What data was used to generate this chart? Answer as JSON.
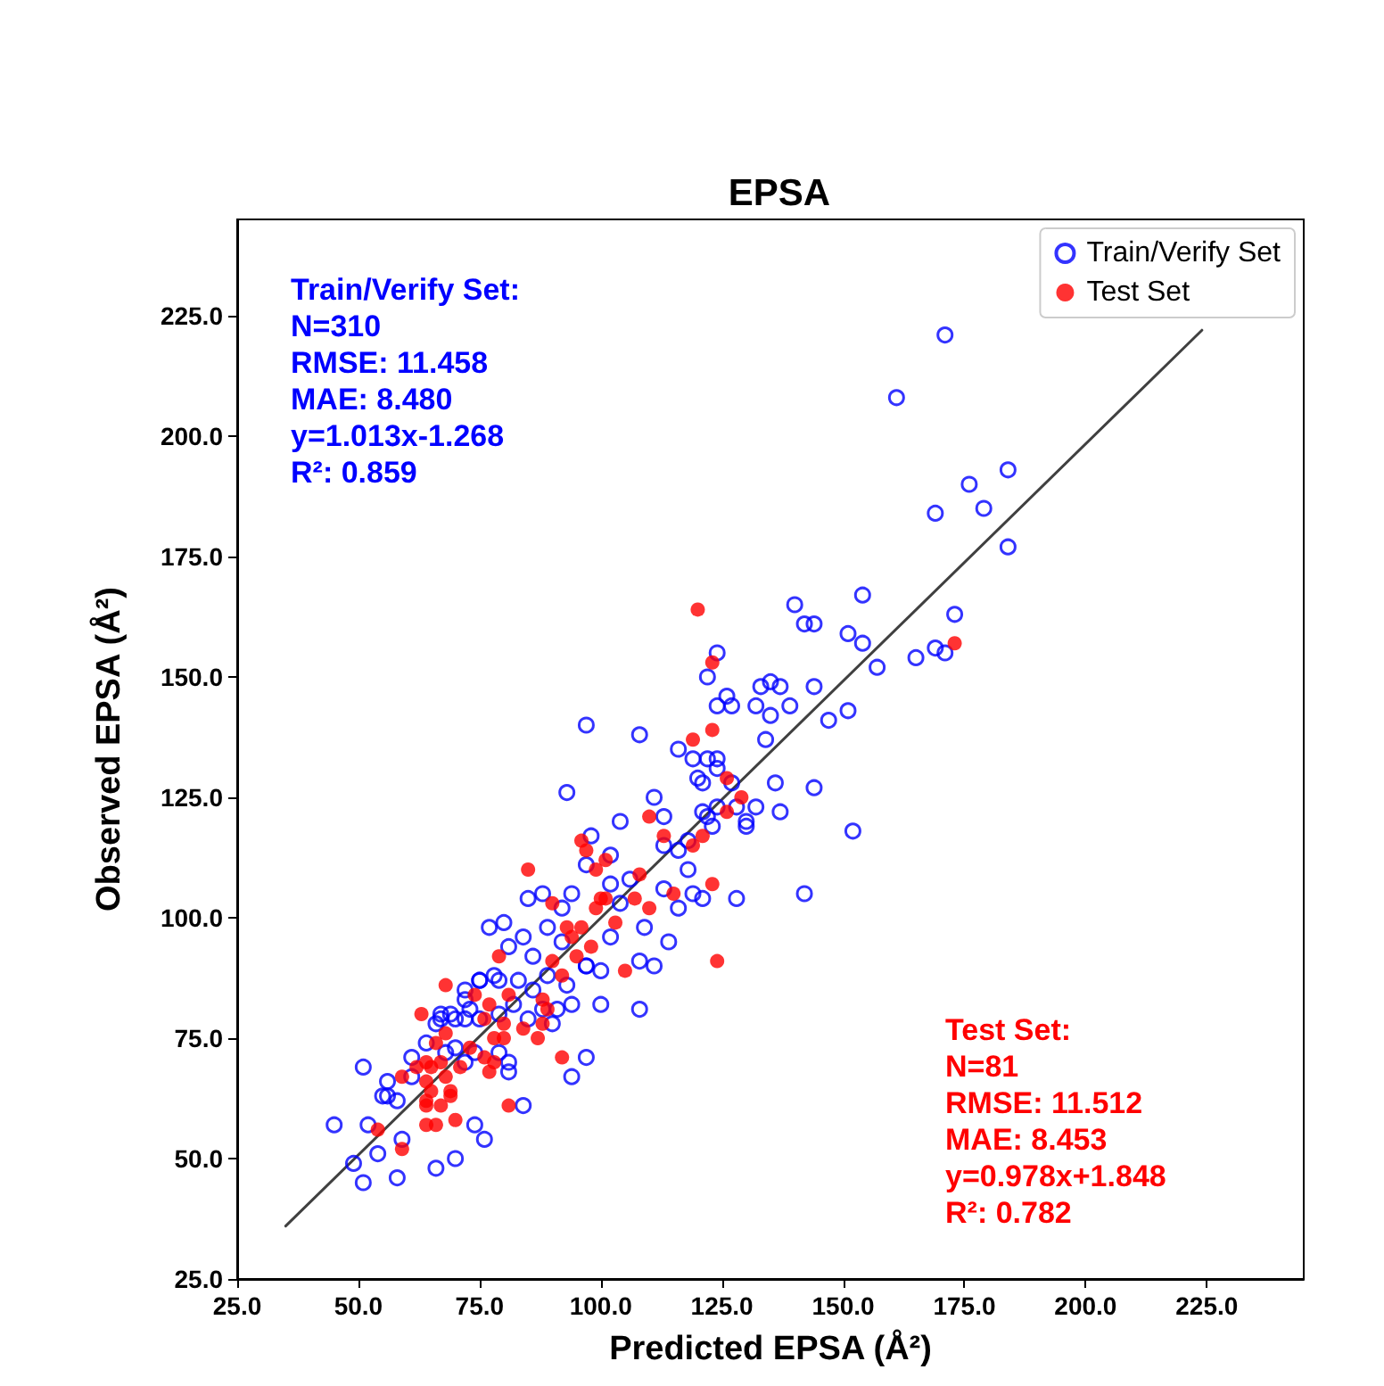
{
  "chart_data": {
    "type": "scatter",
    "title": "EPSA",
    "xlabel": "Predicted EPSA (Å²)",
    "ylabel": "Observed EPSA (Å²)",
    "xlim": [
      25,
      245
    ],
    "ylim": [
      25,
      245
    ],
    "xticks": [
      {
        "value": 25,
        "label": "25.0"
      },
      {
        "value": 50,
        "label": "50.0"
      },
      {
        "value": 75,
        "label": "75.0"
      },
      {
        "value": 100,
        "label": "100.0"
      },
      {
        "value": 125,
        "label": "125.0"
      },
      {
        "value": 150,
        "label": "150.0"
      },
      {
        "value": 175,
        "label": "175.0"
      },
      {
        "value": 200,
        "label": "200.0"
      },
      {
        "value": 225,
        "label": "225.0"
      }
    ],
    "yticks": [
      {
        "value": 25,
        "label": "25.0"
      },
      {
        "value": 50,
        "label": "50.0"
      },
      {
        "value": 75,
        "label": "75.0"
      },
      {
        "value": 100,
        "label": "100.0"
      },
      {
        "value": 125,
        "label": "125.0"
      },
      {
        "value": 150,
        "label": "150.0"
      },
      {
        "value": 175,
        "label": "175.0"
      },
      {
        "value": 200,
        "label": "200.0"
      },
      {
        "value": 225,
        "label": "225.0"
      }
    ],
    "grid": false,
    "legend": "top right",
    "marker": "circle",
    "annotations": [
      "Train/Verify Set:\nN=310\nRMSE: 11.458\nMAE: 8.480\ny=1.013x-1.268\nR²: 0.859",
      "Test Set:\nN=81\nRMSE: 11.512\nMAE: 8.453\ny=0.978x+1.848\nR²: 0.782"
    ],
    "series": [
      {
        "name": "Train/Verify Set",
        "color": "#0000ff",
        "x": [
          171,
          161,
          184,
          176,
          179,
          169,
          184,
          154,
          140,
          142,
          144,
          151,
          154,
          173,
          157,
          165,
          169,
          171,
          124,
          122,
          133,
          135,
          137,
          144,
          126,
          124,
          127,
          132,
          135,
          139,
          147,
          151,
          134,
          116,
          119,
          122,
          124,
          124,
          120,
          121,
          127,
          136,
          144,
          121,
          124,
          128,
          132,
          137,
          122,
          123,
          130,
          130,
          152,
          118,
          116,
          118,
          119,
          121,
          128,
          142,
          116,
          97,
          108,
          93,
          111,
          104,
          113,
          98,
          102,
          113,
          97,
          106,
          113,
          85,
          88,
          94,
          102,
          92,
          104,
          80,
          77,
          84,
          89,
          92,
          102,
          109,
          114,
          81,
          86,
          97,
          108,
          111,
          75,
          79,
          83,
          89,
          93,
          100,
          108,
          72,
          69,
          67,
          72,
          91,
          94,
          51,
          45,
          52,
          49,
          51,
          54,
          58,
          59,
          66,
          70,
          74,
          76,
          84,
          94,
          97,
          56,
          55,
          56,
          58,
          61,
          61,
          64,
          68,
          70,
          81,
          81,
          79,
          74,
          72,
          66,
          67,
          70,
          73,
          75,
          79,
          82,
          85,
          88,
          90,
          86,
          78,
          75,
          72,
          97,
          100
        ],
        "values": [
          221,
          208,
          193,
          190,
          185,
          184,
          177,
          167,
          165,
          161,
          161,
          159,
          157,
          163,
          152,
          154,
          156,
          155,
          155,
          150,
          148,
          149,
          148,
          148,
          146,
          144,
          144,
          144,
          142,
          144,
          141,
          143,
          137,
          135,
          133,
          133,
          133,
          131,
          129,
          128,
          128,
          128,
          127,
          122,
          123,
          123,
          123,
          122,
          121,
          119,
          120,
          119,
          118,
          116,
          114,
          110,
          105,
          104,
          104,
          105,
          102,
          140,
          138,
          126,
          125,
          120,
          121,
          117,
          113,
          115,
          111,
          108,
          106,
          104,
          105,
          105,
          107,
          102,
          103,
          99,
          98,
          96,
          98,
          95,
          96,
          98,
          95,
          94,
          92,
          90,
          91,
          90,
          87,
          87,
          87,
          88,
          86,
          82,
          81,
          83,
          80,
          79,
          79,
          81,
          82,
          69,
          57,
          57,
          49,
          45,
          51,
          46,
          54,
          48,
          50,
          57,
          54,
          61,
          67,
          71,
          66,
          63,
          63,
          62,
          71,
          67,
          74,
          72,
          73,
          68,
          70,
          72,
          72,
          70,
          78,
          80,
          79,
          81,
          79,
          80,
          82,
          79,
          81,
          78,
          85,
          88,
          87,
          85,
          90,
          89
        ]
      },
      {
        "name": "Test Set",
        "color": "#ff0000",
        "x": [
          120,
          123,
          123,
          119,
          126,
          129,
          126,
          110,
          113,
          121,
          119,
          96,
          97,
          101,
          99,
          108,
          123,
          85,
          90,
          100,
          101,
          99,
          107,
          115,
          110,
          103,
          93,
          96,
          94,
          98,
          79,
          95,
          90,
          105,
          124,
          92,
          68,
          74,
          81,
          77,
          88,
          63,
          76,
          89,
          80,
          88,
          84,
          87,
          66,
          68,
          73,
          78,
          80,
          76,
          78,
          77,
          92,
          59,
          62,
          64,
          65,
          67,
          71,
          64,
          68,
          65,
          64,
          69,
          69,
          67,
          64,
          81,
          70,
          64,
          66,
          54,
          59,
          173
        ],
        "values": [
          164,
          153,
          139,
          137,
          129,
          125,
          122,
          121,
          117,
          117,
          115,
          116,
          114,
          112,
          110,
          109,
          107,
          110,
          103,
          104,
          104,
          102,
          104,
          105,
          102,
          99,
          98,
          98,
          96,
          94,
          92,
          92,
          91,
          89,
          91,
          88,
          86,
          84,
          84,
          82,
          83,
          80,
          79,
          81,
          78,
          78,
          77,
          75,
          74,
          76,
          73,
          75,
          75,
          71,
          70,
          68,
          71,
          67,
          69,
          70,
          69,
          70,
          69,
          66,
          67,
          64,
          62,
          64,
          63,
          61,
          61,
          61,
          58,
          57,
          57,
          56,
          52,
          157
        ]
      },
      {
        "type": "line",
        "color": "#404040",
        "marker": "none",
        "line_style": "solid",
        "x": [
          35,
          224
        ],
        "values": [
          36,
          222
        ]
      }
    ]
  }
}
